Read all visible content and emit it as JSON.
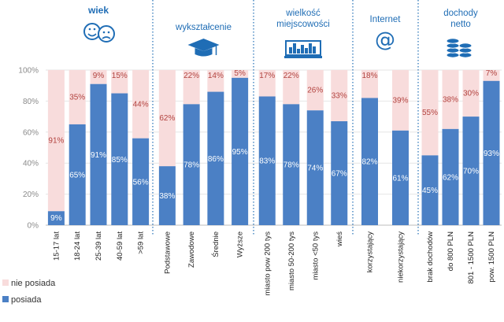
{
  "colors": {
    "posiada": "#4b80c5",
    "nie_posiada": "#f8dcdc",
    "accent": "#1f6db5",
    "top_label": "#b2433f",
    "grid": "#e6e6e6"
  },
  "chart_data": {
    "type": "bar",
    "stacked": true,
    "ylim": [
      0,
      100
    ],
    "yticks": [
      "0%",
      "20%",
      "40%",
      "60%",
      "80%",
      "100%"
    ],
    "series": [
      {
        "name": "posiada",
        "color": "#4b80c5"
      },
      {
        "name": "nie posiada",
        "color": "#f8dcdc"
      }
    ],
    "groups": [
      {
        "key": "wiek",
        "title": [
          "wiek"
        ],
        "bold": true,
        "icon": "faces-icon",
        "categories": [
          {
            "label": "15-17 lat",
            "posiada": 9,
            "nie_posiada": 91,
            "posiada_label": "9%",
            "nie_posiada_label": "91%"
          },
          {
            "label": "18-24 lat",
            "posiada": 65,
            "nie_posiada": 35,
            "posiada_label": "65%",
            "nie_posiada_label": "35%"
          },
          {
            "label": "25-39 lat",
            "posiada": 91,
            "nie_posiada": 9,
            "posiada_label": "91%",
            "nie_posiada_label": "9%"
          },
          {
            "label": "40-59 lat",
            "posiada": 85,
            "nie_posiada": 15,
            "posiada_label": "85%",
            "nie_posiada_label": "15%"
          },
          {
            "label": ">59 lat",
            "posiada": 56,
            "nie_posiada": 44,
            "posiada_label": "56%",
            "nie_posiada_label": "44%"
          }
        ]
      },
      {
        "key": "wyksztalcenie",
        "title": [
          "wykształcenie"
        ],
        "bold": false,
        "icon": "graduation-cap-icon",
        "categories": [
          {
            "label": "Podstawowe",
            "posiada": 38,
            "nie_posiada": 62,
            "posiada_label": "38%",
            "nie_posiada_label": "62%"
          },
          {
            "label": "Zawodowe",
            "posiada": 78,
            "nie_posiada": 22,
            "posiada_label": "78%",
            "nie_posiada_label": "22%"
          },
          {
            "label": "Średnie",
            "posiada": 86,
            "nie_posiada": 14,
            "posiada_label": "86%",
            "nie_posiada_label": "14%"
          },
          {
            "label": "Wyższe",
            "posiada": 95,
            "nie_posiada": 5,
            "posiada_label": "95%",
            "nie_posiada_label": "5%"
          }
        ]
      },
      {
        "key": "wielkosc",
        "title": [
          "wielkość",
          "miejscowości"
        ],
        "bold": false,
        "icon": "city-icon",
        "categories": [
          {
            "label": "miasto pow 200 tys",
            "posiada": 83,
            "nie_posiada": 17,
            "posiada_label": "83%",
            "nie_posiada_label": "17%"
          },
          {
            "label": "miasto 50-200 tys",
            "posiada": 78,
            "nie_posiada": 22,
            "posiada_label": "78%",
            "nie_posiada_label": "22%"
          },
          {
            "label": "miasto <50 tys",
            "posiada": 74,
            "nie_posiada": 26,
            "posiada_label": "74%",
            "nie_posiada_label": "26%"
          },
          {
            "label": "wieś",
            "posiada": 67,
            "nie_posiada": 33,
            "posiada_label": "67%",
            "nie_posiada_label": "33%"
          }
        ]
      },
      {
        "key": "internet",
        "title": [
          "Internet"
        ],
        "bold": false,
        "icon": "at-sign-icon",
        "icon_text": "@",
        "categories": [
          {
            "label": "korzystający",
            "posiada": 82,
            "nie_posiada": 18,
            "posiada_label": "82%",
            "nie_posiada_label": "18%"
          },
          {
            "label": "niekorzystający",
            "posiada": 61,
            "nie_posiada": 39,
            "posiada_label": "61%",
            "nie_posiada_label": "39%"
          }
        ]
      },
      {
        "key": "dochody",
        "title": [
          "dochody",
          "netto"
        ],
        "bold": false,
        "icon": "coins-icon",
        "categories": [
          {
            "label": "brak dochodów",
            "posiada": 45,
            "nie_posiada": 55,
            "posiada_label": "45%",
            "nie_posiada_label": "55%"
          },
          {
            "label": "do 800 PLN",
            "posiada": 62,
            "nie_posiada": 38,
            "posiada_label": "62%",
            "nie_posiada_label": "38%"
          },
          {
            "label": "801 - 1500 PLN",
            "posiada": 70,
            "nie_posiada": 30,
            "posiada_label": "70%",
            "nie_posiada_label": "30%"
          },
          {
            "label": "pow. 1500 PLN",
            "posiada": 93,
            "nie_posiada": 7,
            "posiada_label": "93%",
            "nie_posiada_label": "7%"
          }
        ]
      }
    ],
    "legend": [
      {
        "key": "nie_posiada",
        "label": "nie posiada"
      },
      {
        "key": "posiada",
        "label": "posiada"
      }
    ]
  }
}
